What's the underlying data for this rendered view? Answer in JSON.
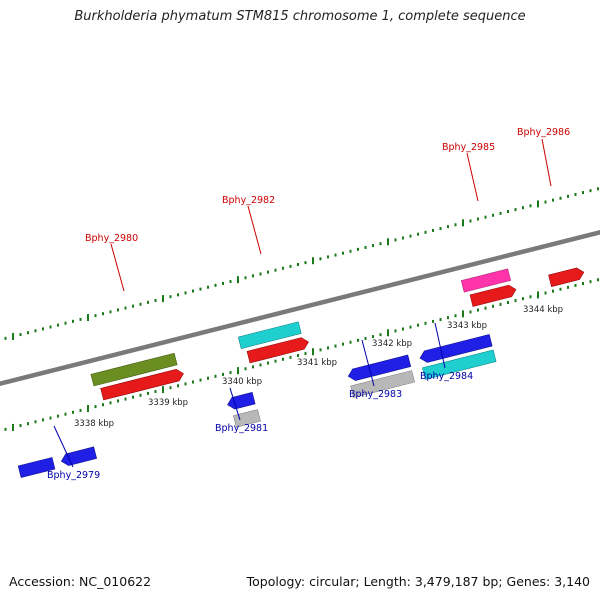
{
  "title": "Burkholderia phymatum STM815 chromosome 1, complete sequence",
  "footer": {
    "accession": "Accession: NC_010622",
    "summary": "Topology: circular; Length: 3,479,187 bp; Genes: 3,140"
  },
  "colors": {
    "backbone": "#808080",
    "ticks": "#1a7a1a",
    "top_label": "#cc0000",
    "bottom_label": "#0000aa"
  },
  "scale_labels": [
    "3338 kbp",
    "3339 kbp",
    "3340 kbp",
    "3341 kbp",
    "3342 kbp",
    "3343 kbp",
    "3344 kbp"
  ],
  "genes": [
    {
      "name": "Bphy_2979",
      "strand": "minus"
    },
    {
      "name": "Bphy_2980",
      "strand": "plus"
    },
    {
      "name": "Bphy_2981",
      "strand": "minus"
    },
    {
      "name": "Bphy_2982",
      "strand": "plus"
    },
    {
      "name": "Bphy_2983",
      "strand": "minus"
    },
    {
      "name": "Bphy_2984",
      "strand": "minus"
    },
    {
      "name": "Bphy_2985",
      "strand": "plus"
    },
    {
      "name": "Bphy_2986",
      "strand": "plus"
    }
  ],
  "feature_colors": [
    "#1f1fe6",
    "#6b8e23",
    "#e61a1a",
    "#b8b8b8",
    "#1fcfcf",
    "#ff33aa",
    "#e69a9a"
  ]
}
